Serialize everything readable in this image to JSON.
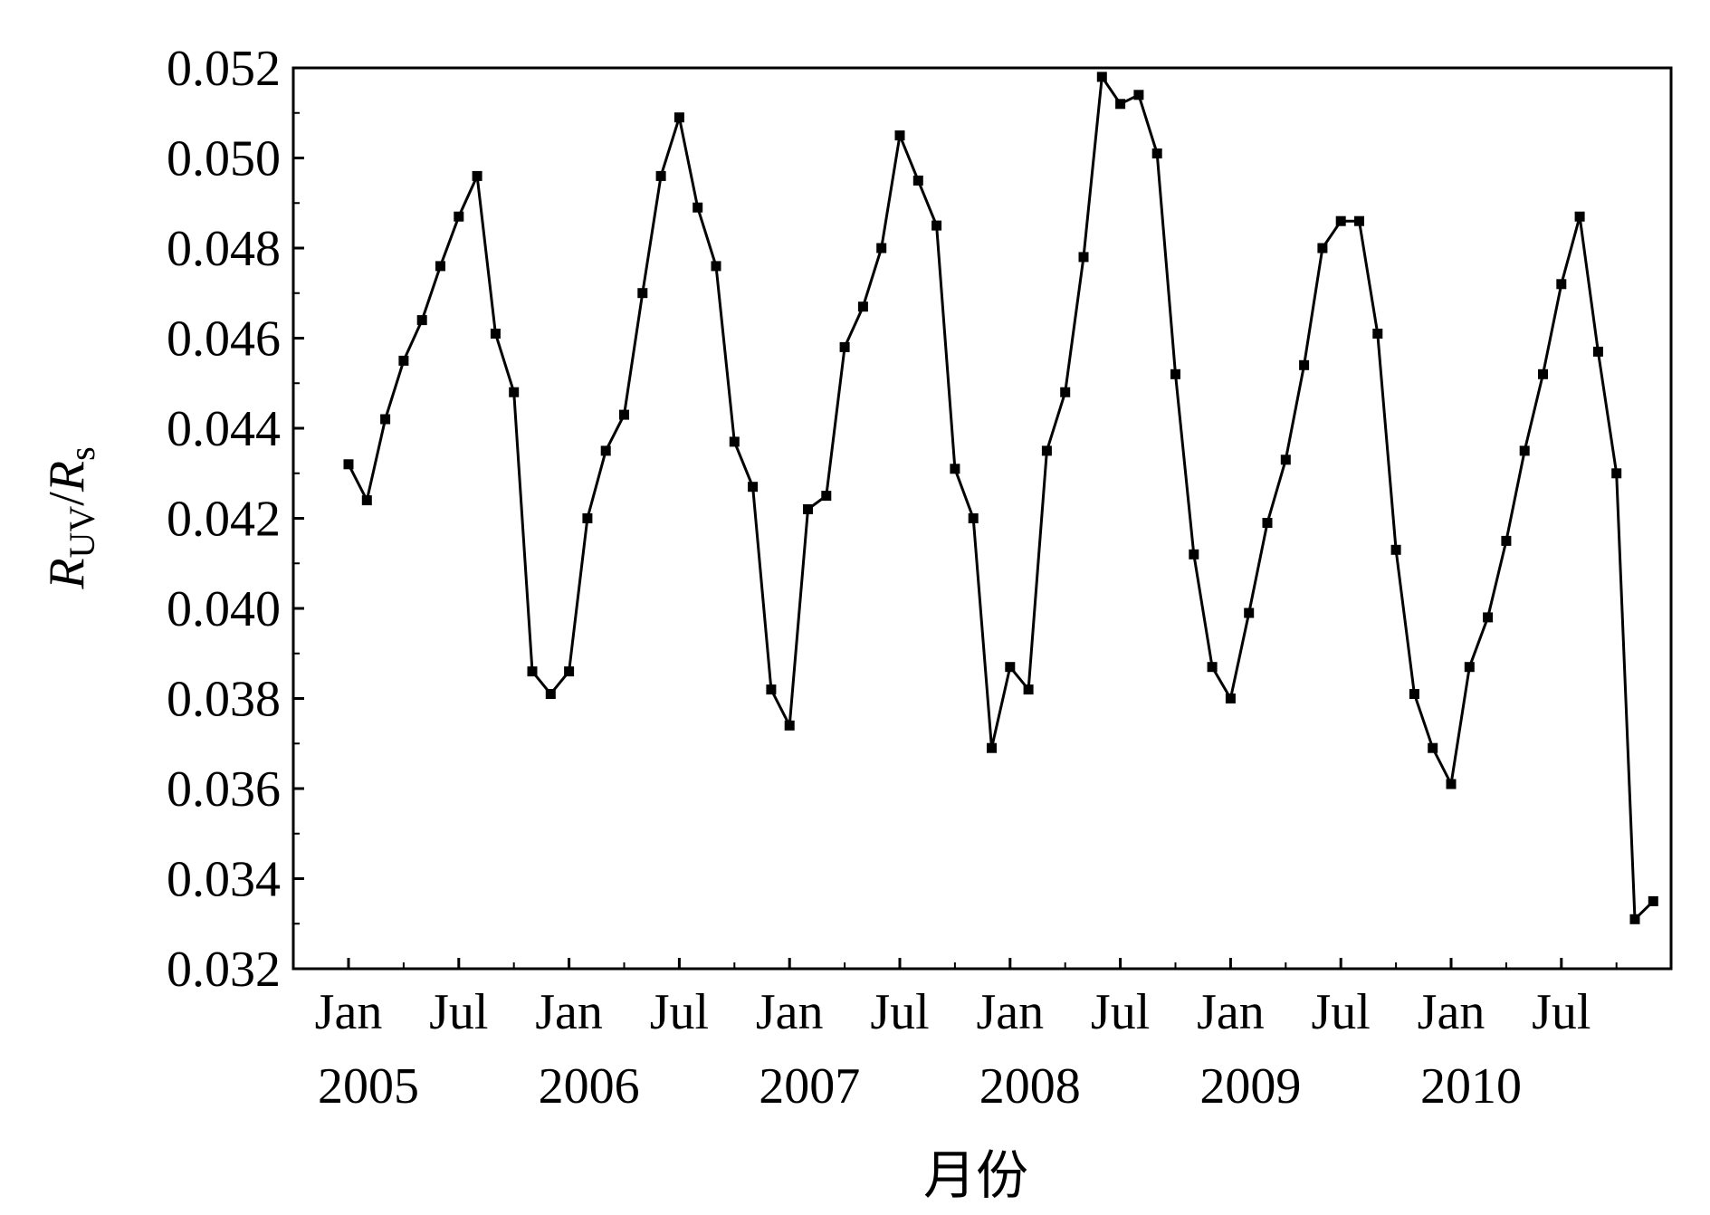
{
  "chart_data": {
    "type": "line",
    "xlabel": "月份",
    "ylabel": {
      "main": "R",
      "sub1": "UV",
      "sep": "/",
      "main2": "R",
      "sub2": "s"
    },
    "ylim": [
      0.032,
      0.052
    ],
    "yticks": [
      "0.032",
      "0.034",
      "0.036",
      "0.038",
      "0.040",
      "0.042",
      "0.044",
      "0.046",
      "0.048",
      "0.050",
      "0.052"
    ],
    "xlim": [
      "2004-12",
      "2010-12"
    ],
    "xticks": [
      {
        "month": "Jan",
        "year": "2005"
      },
      {
        "month": "Jul",
        "year": ""
      },
      {
        "month": "Jan",
        "year": "2006"
      },
      {
        "month": "Jul",
        "year": ""
      },
      {
        "month": "Jan",
        "year": "2007"
      },
      {
        "month": "Jul",
        "year": ""
      },
      {
        "month": "Jan",
        "year": "2008"
      },
      {
        "month": "Jul",
        "year": ""
      },
      {
        "month": "Jan",
        "year": "2009"
      },
      {
        "month": "Jul",
        "year": ""
      },
      {
        "month": "Jan",
        "year": "2010"
      },
      {
        "month": "Jul",
        "year": ""
      }
    ],
    "grid": false,
    "legend": "none",
    "line_color": "#000000",
    "marker": "square",
    "series": [
      {
        "x": [
          "2005-01",
          "2005-02",
          "2005-03",
          "2005-04",
          "2005-05",
          "2005-06",
          "2005-07",
          "2005-08",
          "2005-09",
          "2005-10",
          "2005-11",
          "2005-12",
          "2006-01",
          "2006-02",
          "2006-03",
          "2006-04",
          "2006-05",
          "2006-06",
          "2006-07",
          "2006-08",
          "2006-09",
          "2006-10",
          "2006-11",
          "2006-12",
          "2007-01",
          "2007-02",
          "2007-03",
          "2007-04",
          "2007-05",
          "2007-06",
          "2007-07",
          "2007-08",
          "2007-09",
          "2007-10",
          "2007-11",
          "2007-12",
          "2008-01",
          "2008-02",
          "2008-03",
          "2008-04",
          "2008-05",
          "2008-06",
          "2008-07",
          "2008-08",
          "2008-09",
          "2008-10",
          "2008-11",
          "2008-12",
          "2009-01",
          "2009-02",
          "2009-03",
          "2009-04",
          "2009-05",
          "2009-06",
          "2009-07",
          "2009-08",
          "2009-09",
          "2009-10",
          "2009-11",
          "2009-12",
          "2010-01",
          "2010-02",
          "2010-03",
          "2010-04",
          "2010-05",
          "2010-06",
          "2010-07",
          "2010-08",
          "2010-09",
          "2010-10",
          "2010-11",
          "2010-12"
        ],
        "values": [
          0.0432,
          0.0424,
          0.0442,
          0.0455,
          0.0464,
          0.0476,
          0.0487,
          0.0496,
          0.0461,
          0.0448,
          0.0386,
          0.0381,
          0.0386,
          0.042,
          0.0435,
          0.0443,
          0.047,
          0.0496,
          0.0509,
          0.0489,
          0.0476,
          0.0437,
          0.0427,
          0.0382,
          0.0374,
          0.0422,
          0.0425,
          0.0458,
          0.0467,
          0.048,
          0.0505,
          0.0495,
          0.0485,
          0.0431,
          0.042,
          0.0369,
          0.0387,
          0.0382,
          0.0435,
          0.0448,
          0.0478,
          0.0518,
          0.0512,
          0.0514,
          0.0501,
          0.0452,
          0.0412,
          0.0387,
          0.038,
          0.0399,
          0.0419,
          0.0433,
          0.0454,
          0.048,
          0.0486,
          0.0486,
          0.0461,
          0.0413,
          0.0381,
          0.0369,
          0.0361,
          0.0387,
          0.0398,
          0.0415,
          0.0435,
          0.0452,
          0.0472,
          0.0487,
          0.0457,
          0.043,
          0.0331,
          0.0335
        ]
      }
    ]
  }
}
